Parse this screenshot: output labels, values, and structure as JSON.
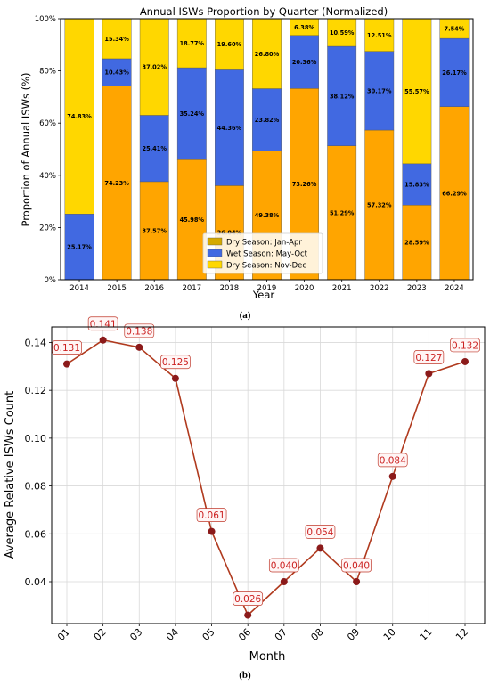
{
  "charts": [
    {
      "panel_label": "(a)",
      "title": "Annual ISWs Proportion by Quarter (Normalized)",
      "xlabel": "Year",
      "ylabel": "Proportion of Annual ISWs (%)"
    },
    {
      "panel_label": "(b)",
      "title": "",
      "xlabel": "Month",
      "ylabel": "Average Relative ISWs Count"
    }
  ],
  "chart_data": [
    {
      "type": "bar",
      "stacked": true,
      "title": "Annual ISWs Proportion by Quarter (Normalized)",
      "xlabel": "Year",
      "ylabel": "Proportion of Annual ISWs (%)",
      "ylim": [
        0,
        100
      ],
      "yticks": [
        "0%",
        "20%",
        "40%",
        "60%",
        "80%",
        "100%"
      ],
      "categories": [
        "2014",
        "2015",
        "2016",
        "2017",
        "2018",
        "2019",
        "2020",
        "2021",
        "2022",
        "2023",
        "2024"
      ],
      "series": [
        {
          "name": "Dry Season: Jan-Apr",
          "color": "#ffa500",
          "values": [
            0,
            74.23,
            37.57,
            45.98,
            36.04,
            49.38,
            73.26,
            51.29,
            57.32,
            28.59,
            66.29
          ],
          "labels": [
            "",
            "74.23%",
            "37.57%",
            "45.98%",
            "36.04%",
            "49.38%",
            "73.26%",
            "51.29%",
            "57.32%",
            "28.59%",
            "66.29%"
          ]
        },
        {
          "name": "Wet Season: May-Oct",
          "color": "#4169e1",
          "values": [
            25.17,
            10.43,
            25.41,
            35.24,
            44.36,
            23.82,
            20.36,
            38.12,
            30.17,
            15.83,
            26.17
          ],
          "labels": [
            "25.17%",
            "10.43%",
            "25.41%",
            "35.24%",
            "44.36%",
            "23.82%",
            "20.36%",
            "38.12%",
            "30.17%",
            "15.83%",
            "26.17%"
          ]
        },
        {
          "name": "Dry Season: Nov-Dec",
          "color": "#ffd700",
          "values": [
            74.83,
            15.34,
            37.02,
            18.77,
            19.6,
            26.8,
            6.38,
            10.59,
            12.51,
            55.57,
            7.54
          ],
          "labels": [
            "74.83%",
            "15.34%",
            "37.02%",
            "18.77%",
            "19.60%",
            "26.80%",
            "6.38%",
            "10.59%",
            "12.51%",
            "55.57%",
            "7.54%"
          ]
        }
      ],
      "legend": {
        "placement": "bottom-center",
        "labels": [
          "Dry Season: Jan-Apr",
          "Wet Season: May-Oct",
          "Dry Season: Nov-Dec"
        ],
        "swatch_colors": [
          "#d4a900",
          "#4169e1",
          "#ffd700"
        ]
      },
      "grid": false
    },
    {
      "type": "line",
      "title": "",
      "xlabel": "Month",
      "ylabel": "Average Relative ISWs Count",
      "x": [
        "01",
        "02",
        "03",
        "04",
        "05",
        "06",
        "07",
        "08",
        "09",
        "10",
        "11",
        "12"
      ],
      "series": [
        {
          "name": "",
          "values": [
            0.131,
            0.141,
            0.138,
            0.125,
            0.061,
            0.026,
            0.04,
            0.054,
            0.04,
            0.084,
            0.127,
            0.132
          ],
          "labels": [
            "0.131",
            "0.141",
            "0.138",
            "0.125",
            "0.061",
            "0.026",
            "0.040",
            "0.054",
            "0.040",
            "0.084",
            "0.127",
            "0.132"
          ],
          "line_color": "#b03a1e",
          "marker_color": "#8b1a1a",
          "label_color": "#cc2222"
        }
      ],
      "ylim": [
        0.0225,
        0.1465
      ],
      "yticks": [
        "0.04",
        "0.06",
        "0.08",
        "0.10",
        "0.12",
        "0.14"
      ],
      "grid": true
    }
  ]
}
